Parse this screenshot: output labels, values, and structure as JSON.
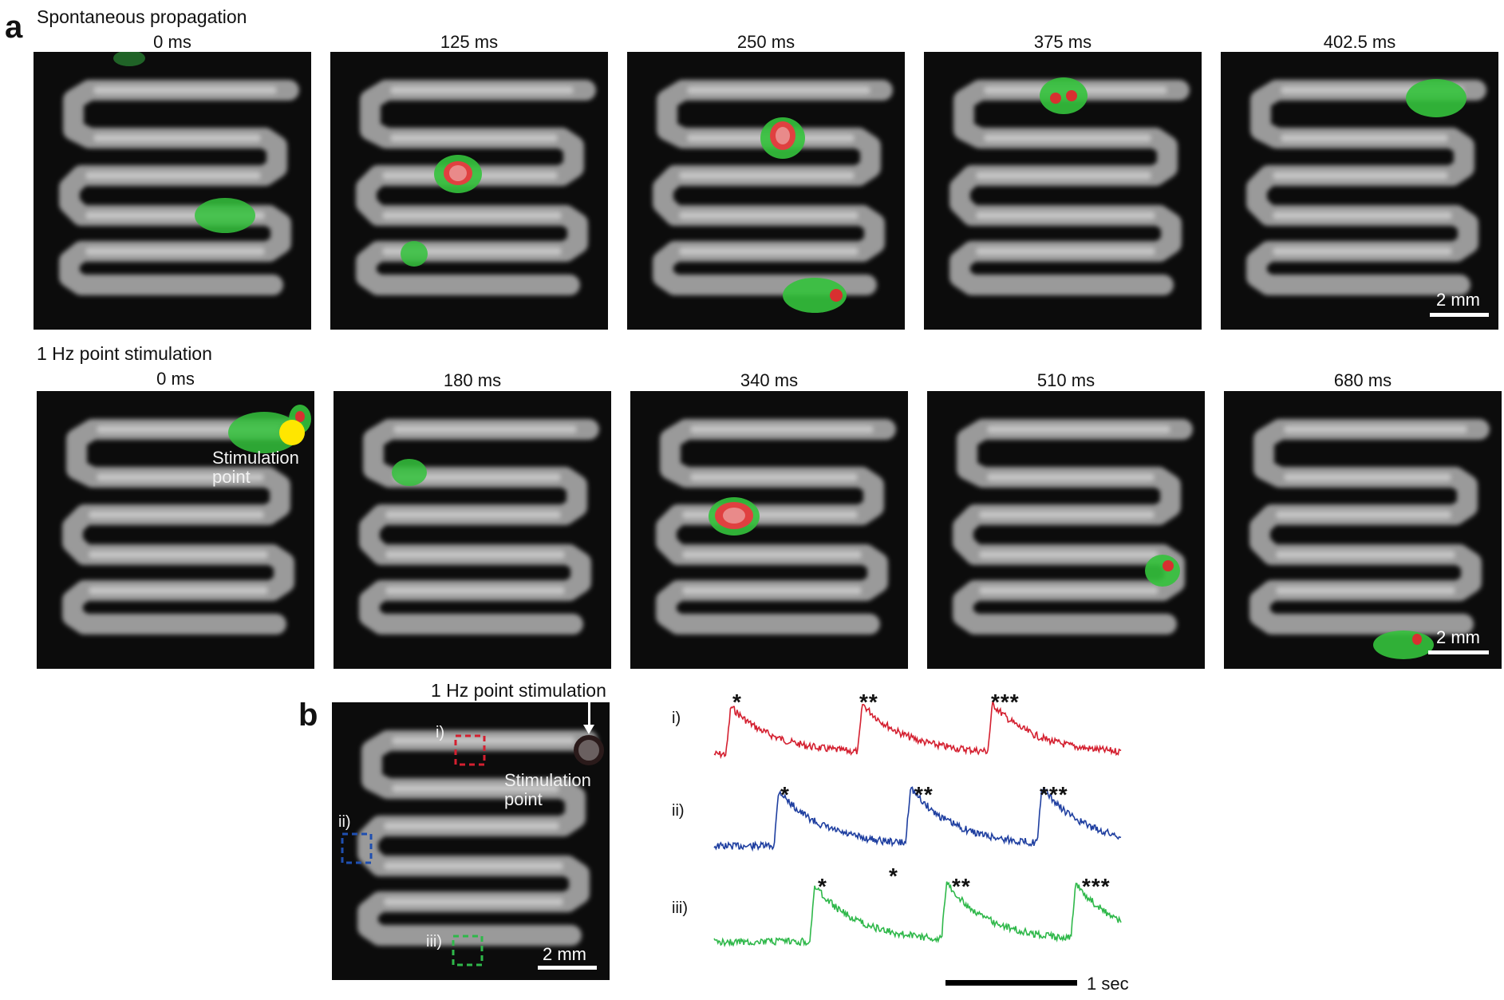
{
  "panel_a": {
    "letter": "a",
    "row1": {
      "label": "Spontaneous propagation",
      "times": [
        "0 ms",
        "125 ms",
        "250 ms",
        "375 ms",
        "402.5 ms"
      ],
      "scale_bar": "2 mm"
    },
    "row2": {
      "label": "1 Hz point stimulation",
      "times": [
        "0 ms",
        "180 ms",
        "340 ms",
        "510 ms",
        "680 ms"
      ],
      "stim_label_line1": "Stimulation",
      "stim_label_line2": "point",
      "scale_bar": "2 mm"
    }
  },
  "panel_b": {
    "letter": "b",
    "title": "1 Hz point stimulation",
    "stim_label_line1": "Stimulation",
    "stim_label_line2": "point",
    "scale_bar": "2 mm",
    "roi_labels": [
      "i)",
      "ii)",
      "iii)"
    ],
    "trace_labels": [
      "i)",
      "ii)",
      "iii)"
    ],
    "stars": [
      "*",
      "**",
      "***"
    ],
    "time_scale": "1 sec",
    "colors": {
      "i": "#d42030",
      "ii": "#1f3fa0",
      "iii": "#2fb84a"
    }
  }
}
